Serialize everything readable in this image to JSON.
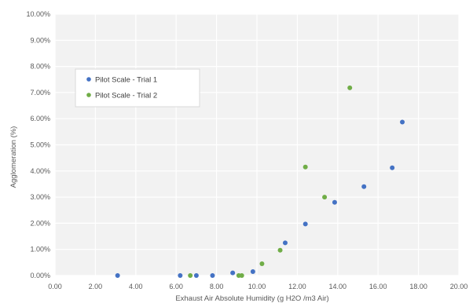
{
  "chart_data": {
    "type": "scatter",
    "title": "",
    "xlabel": "Exhaust Air Absolute Humidity (g H2O /m3 Air)",
    "ylabel": "Agglomeration (%)",
    "xlim": [
      0,
      20
    ],
    "ylim": [
      0,
      10
    ],
    "x_ticks": [
      "0.00",
      "2.00",
      "4.00",
      "6.00",
      "8.00",
      "10.00",
      "12.00",
      "14.00",
      "16.00",
      "18.00",
      "20.00"
    ],
    "y_ticks": [
      "0.00%",
      "1.00%",
      "2.00%",
      "3.00%",
      "4.00%",
      "5.00%",
      "6.00%",
      "7.00%",
      "8.00%",
      "9.00%",
      "10.00%"
    ],
    "grid": true,
    "legend_position": "upper-left",
    "series": [
      {
        "name": "Pilot Scale - Trial 1",
        "color": "#4472C4",
        "points": [
          {
            "x": 3.1,
            "y": 0.0
          },
          {
            "x": 6.2,
            "y": 0.0
          },
          {
            "x": 7.0,
            "y": 0.0
          },
          {
            "x": 7.8,
            "y": 0.0
          },
          {
            "x": 8.8,
            "y": 0.1
          },
          {
            "x": 9.8,
            "y": 0.15
          },
          {
            "x": 11.4,
            "y": 1.25
          },
          {
            "x": 12.4,
            "y": 1.97
          },
          {
            "x": 13.85,
            "y": 2.8
          },
          {
            "x": 15.3,
            "y": 3.4
          },
          {
            "x": 16.7,
            "y": 4.12
          },
          {
            "x": 17.2,
            "y": 5.87
          }
        ]
      },
      {
        "name": "Pilot Scale - Trial 2",
        "color": "#70AD47",
        "points": [
          {
            "x": 6.7,
            "y": 0.0
          },
          {
            "x": 9.1,
            "y": 0.0
          },
          {
            "x": 9.25,
            "y": 0.0
          },
          {
            "x": 10.25,
            "y": 0.45
          },
          {
            "x": 11.15,
            "y": 0.97
          },
          {
            "x": 12.4,
            "y": 4.15
          },
          {
            "x": 13.35,
            "y": 3.0
          },
          {
            "x": 14.6,
            "y": 7.18
          }
        ]
      }
    ]
  }
}
